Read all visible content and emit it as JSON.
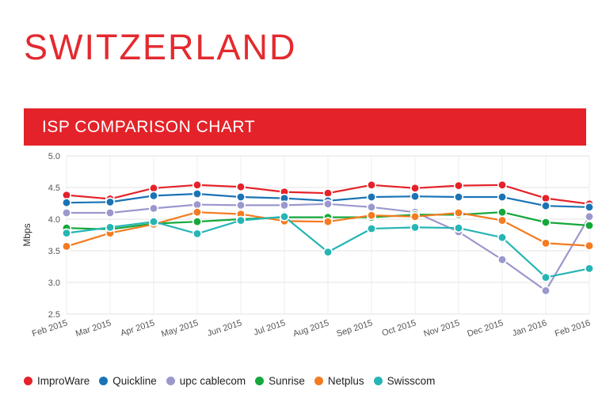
{
  "page": {
    "title": "SWITZERLAND",
    "banner": "ISP COMPARISON CHART",
    "accent": "#e42229"
  },
  "chart_data": {
    "type": "line",
    "title": "ISP COMPARISON CHART",
    "xlabel": "",
    "ylabel": "Mbps",
    "ylim": [
      2.5,
      5.0
    ],
    "yticks": [
      "2.5",
      "3.0",
      "3.5",
      "4.0",
      "4.5",
      "5.0"
    ],
    "categories": [
      "Feb 2015",
      "Mar 2015",
      "Apr 2015",
      "May 2015",
      "Jun 2015",
      "Jul 2015",
      "Aug 2015",
      "Sep 2015",
      "Oct 2015",
      "Nov 2015",
      "Dec 2015",
      "Jan 2016",
      "Feb 2016"
    ],
    "grid": true,
    "legend_position": "bottom",
    "series": [
      {
        "name": "ImproWare",
        "color": "#e42229",
        "values": [
          4.38,
          4.32,
          4.49,
          4.54,
          4.51,
          4.43,
          4.41,
          4.54,
          4.49,
          4.53,
          4.54,
          4.33,
          4.24
        ]
      },
      {
        "name": "Quickline",
        "color": "#1a73b5",
        "values": [
          4.26,
          4.27,
          4.37,
          4.4,
          4.35,
          4.33,
          4.29,
          4.35,
          4.36,
          4.35,
          4.35,
          4.21,
          4.19
        ]
      },
      {
        "name": "upc cablecom",
        "color": "#9b98cc",
        "values": [
          4.1,
          4.1,
          4.17,
          4.23,
          4.22,
          4.22,
          4.24,
          4.19,
          4.11,
          3.8,
          3.36,
          2.87,
          4.04
        ]
      },
      {
        "name": "Sunrise",
        "color": "#14a83a",
        "values": [
          3.86,
          3.84,
          3.93,
          3.96,
          4.0,
          4.03,
          4.03,
          4.03,
          4.07,
          4.07,
          4.11,
          3.95,
          3.9
        ]
      },
      {
        "name": "Netplus",
        "color": "#f47b20",
        "values": [
          3.57,
          3.78,
          3.92,
          4.11,
          4.08,
          3.97,
          3.96,
          4.06,
          4.04,
          4.1,
          3.98,
          3.62,
          3.58
        ]
      },
      {
        "name": "Swisscom",
        "color": "#26b5b4",
        "values": [
          3.78,
          3.87,
          3.96,
          3.77,
          3.98,
          4.04,
          3.48,
          3.85,
          3.87,
          3.86,
          3.71,
          3.08,
          3.22
        ]
      }
    ]
  }
}
